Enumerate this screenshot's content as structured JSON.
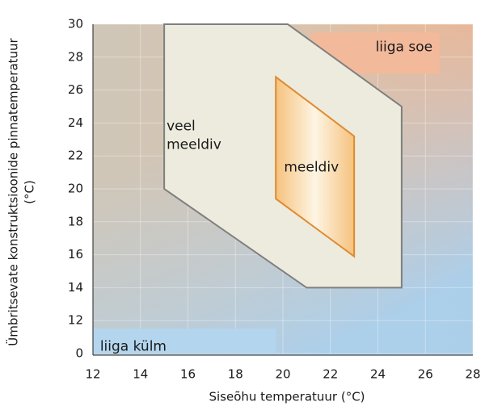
{
  "chart_data": {
    "type": "region",
    "xlabel": "Siseõhu temperatuur (°C)",
    "ylabel": [
      "Ümbritsevate konstruktsioonide pinnatemperatuur",
      "(°C)"
    ],
    "xlim": [
      12,
      28
    ],
    "ylim": [
      0,
      30
    ],
    "ybreak": [
      0,
      12
    ],
    "xticks": [
      12,
      14,
      16,
      18,
      20,
      22,
      24,
      26,
      28
    ],
    "yticks": [
      0,
      12,
      14,
      16,
      18,
      20,
      22,
      24,
      26,
      28,
      30
    ],
    "grid": true,
    "regions": [
      {
        "name": [
          "liiga soe"
        ],
        "color": "#f2b99a",
        "x": [
          21.2,
          26.6,
          26.6,
          22.4,
          21.2
        ],
        "y": [
          29.5,
          29.5,
          27,
          27,
          28.2
        ]
      },
      {
        "name": [
          "liiga külm"
        ],
        "color": "#b3d6ee",
        "x": [
          12,
          19.7,
          19.7,
          12
        ],
        "y": [
          0,
          0,
          9,
          9
        ]
      },
      {
        "name": [
          "veel",
          "meeldiv"
        ],
        "color": "#ecebdd",
        "stroke": "#7f7f7f",
        "x": [
          15,
          20.2,
          25,
          25,
          21,
          15
        ],
        "y": [
          30,
          30,
          25,
          14,
          14,
          20
        ]
      },
      {
        "name": [
          "meeldiv"
        ],
        "color": "#f7cf96",
        "stroke": "#e08a30",
        "x": [
          19.7,
          23,
          23,
          19.7
        ],
        "y": [
          26.8,
          23.2,
          15.9,
          19.4
        ]
      }
    ]
  }
}
